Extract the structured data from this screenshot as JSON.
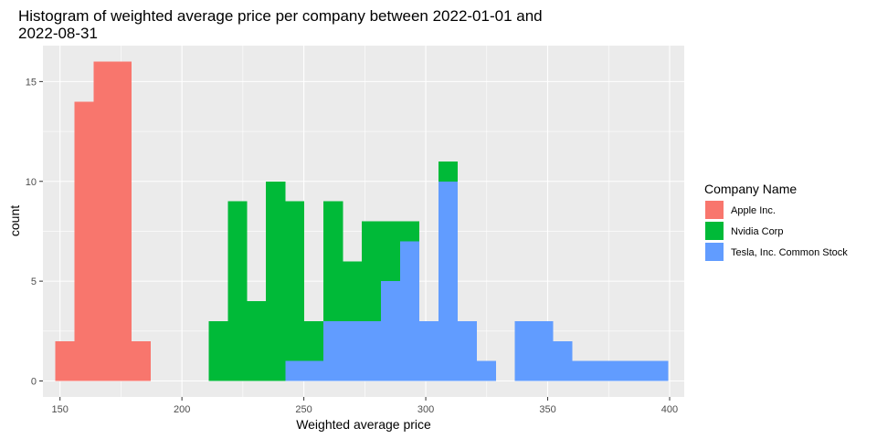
{
  "chart_data": {
    "type": "bar",
    "title_line1": "Histogram of weighted average price per company between 2022-01-01 and",
    "title_line2": "2022-08-31",
    "xlabel": "Weighted average price",
    "ylabel": "count",
    "xlim": [
      143,
      406
    ],
    "ylim": [
      -0.8,
      16.8
    ],
    "xticks": [
      150,
      200,
      250,
      300,
      350,
      400
    ],
    "yticks": [
      0,
      5,
      10,
      15
    ],
    "grid": true,
    "legend_position": "right",
    "legend_title": "Company Name",
    "bin_width": 7.86,
    "bins": [
      {
        "x0": 148.0,
        "x1": 155.9,
        "Apple Inc.": 2,
        "Nvidia Corp": 0,
        "Tesla, Inc. Common Stock": 0
      },
      {
        "x0": 155.9,
        "x1": 163.7,
        "Apple Inc.": 14,
        "Nvidia Corp": 0,
        "Tesla, Inc. Common Stock": 0
      },
      {
        "x0": 163.7,
        "x1": 171.6,
        "Apple Inc.": 16,
        "Nvidia Corp": 0,
        "Tesla, Inc. Common Stock": 0
      },
      {
        "x0": 171.6,
        "x1": 179.4,
        "Apple Inc.": 16,
        "Nvidia Corp": 0,
        "Tesla, Inc. Common Stock": 0
      },
      {
        "x0": 179.4,
        "x1": 187.3,
        "Apple Inc.": 2,
        "Nvidia Corp": 0,
        "Tesla, Inc. Common Stock": 0
      },
      {
        "x0": 211.0,
        "x1": 218.8,
        "Apple Inc.": 0,
        "Nvidia Corp": 3,
        "Tesla, Inc. Common Stock": 0
      },
      {
        "x0": 218.8,
        "x1": 226.7,
        "Apple Inc.": 0,
        "Nvidia Corp": 9,
        "Tesla, Inc. Common Stock": 0
      },
      {
        "x0": 226.7,
        "x1": 234.5,
        "Apple Inc.": 0,
        "Nvidia Corp": 4,
        "Tesla, Inc. Common Stock": 0
      },
      {
        "x0": 234.5,
        "x1": 242.4,
        "Apple Inc.": 0,
        "Nvidia Corp": 10,
        "Tesla, Inc. Common Stock": 0
      },
      {
        "x0": 242.4,
        "x1": 250.2,
        "Apple Inc.": 0,
        "Nvidia Corp": 8,
        "Tesla, Inc. Common Stock": 1
      },
      {
        "x0": 250.2,
        "x1": 258.1,
        "Apple Inc.": 0,
        "Nvidia Corp": 2,
        "Tesla, Inc. Common Stock": 1
      },
      {
        "x0": 258.1,
        "x1": 266.0,
        "Apple Inc.": 0,
        "Nvidia Corp": 6,
        "Tesla, Inc. Common Stock": 3
      },
      {
        "x0": 266.0,
        "x1": 273.8,
        "Apple Inc.": 0,
        "Nvidia Corp": 3,
        "Tesla, Inc. Common Stock": 3
      },
      {
        "x0": 273.8,
        "x1": 281.7,
        "Apple Inc.": 0,
        "Nvidia Corp": 5,
        "Tesla, Inc. Common Stock": 3
      },
      {
        "x0": 281.7,
        "x1": 289.5,
        "Apple Inc.": 0,
        "Nvidia Corp": 3,
        "Tesla, Inc. Common Stock": 5
      },
      {
        "x0": 289.5,
        "x1": 297.4,
        "Apple Inc.": 0,
        "Nvidia Corp": 1,
        "Tesla, Inc. Common Stock": 7
      },
      {
        "x0": 297.4,
        "x1": 305.2,
        "Apple Inc.": 0,
        "Nvidia Corp": 0,
        "Tesla, Inc. Common Stock": 3
      },
      {
        "x0": 305.2,
        "x1": 313.1,
        "Apple Inc.": 0,
        "Nvidia Corp": 1,
        "Tesla, Inc. Common Stock": 10
      },
      {
        "x0": 313.1,
        "x1": 320.9,
        "Apple Inc.": 0,
        "Nvidia Corp": 0,
        "Tesla, Inc. Common Stock": 3
      },
      {
        "x0": 320.9,
        "x1": 328.8,
        "Apple Inc.": 0,
        "Nvidia Corp": 0,
        "Tesla, Inc. Common Stock": 1
      },
      {
        "x0": 336.5,
        "x1": 344.4,
        "Apple Inc.": 0,
        "Nvidia Corp": 0,
        "Tesla, Inc. Common Stock": 3
      },
      {
        "x0": 344.4,
        "x1": 352.2,
        "Apple Inc.": 0,
        "Nvidia Corp": 0,
        "Tesla, Inc. Common Stock": 3
      },
      {
        "x0": 352.2,
        "x1": 360.1,
        "Apple Inc.": 0,
        "Nvidia Corp": 0,
        "Tesla, Inc. Common Stock": 2
      },
      {
        "x0": 360.1,
        "x1": 368.0,
        "Apple Inc.": 0,
        "Nvidia Corp": 0,
        "Tesla, Inc. Common Stock": 1
      },
      {
        "x0": 368.0,
        "x1": 375.8,
        "Apple Inc.": 0,
        "Nvidia Corp": 0,
        "Tesla, Inc. Common Stock": 1
      },
      {
        "x0": 375.8,
        "x1": 383.7,
        "Apple Inc.": 0,
        "Nvidia Corp": 0,
        "Tesla, Inc. Common Stock": 1
      },
      {
        "x0": 383.7,
        "x1": 391.5,
        "Apple Inc.": 0,
        "Nvidia Corp": 0,
        "Tesla, Inc. Common Stock": 1
      },
      {
        "x0": 391.5,
        "x1": 399.4,
        "Apple Inc.": 0,
        "Nvidia Corp": 0,
        "Tesla, Inc. Common Stock": 1
      }
    ],
    "series": [
      {
        "name": "Apple Inc.",
        "color": "#F8766D"
      },
      {
        "name": "Nvidia Corp",
        "color": "#00BA38"
      },
      {
        "name": "Tesla, Inc. Common Stock",
        "color": "#619CFF"
      }
    ],
    "stack_order": [
      "Tesla, Inc. Common Stock",
      "Nvidia Corp",
      "Apple Inc."
    ],
    "panel_background": "#EBEBEB",
    "grid_color": "#FFFFFF"
  }
}
